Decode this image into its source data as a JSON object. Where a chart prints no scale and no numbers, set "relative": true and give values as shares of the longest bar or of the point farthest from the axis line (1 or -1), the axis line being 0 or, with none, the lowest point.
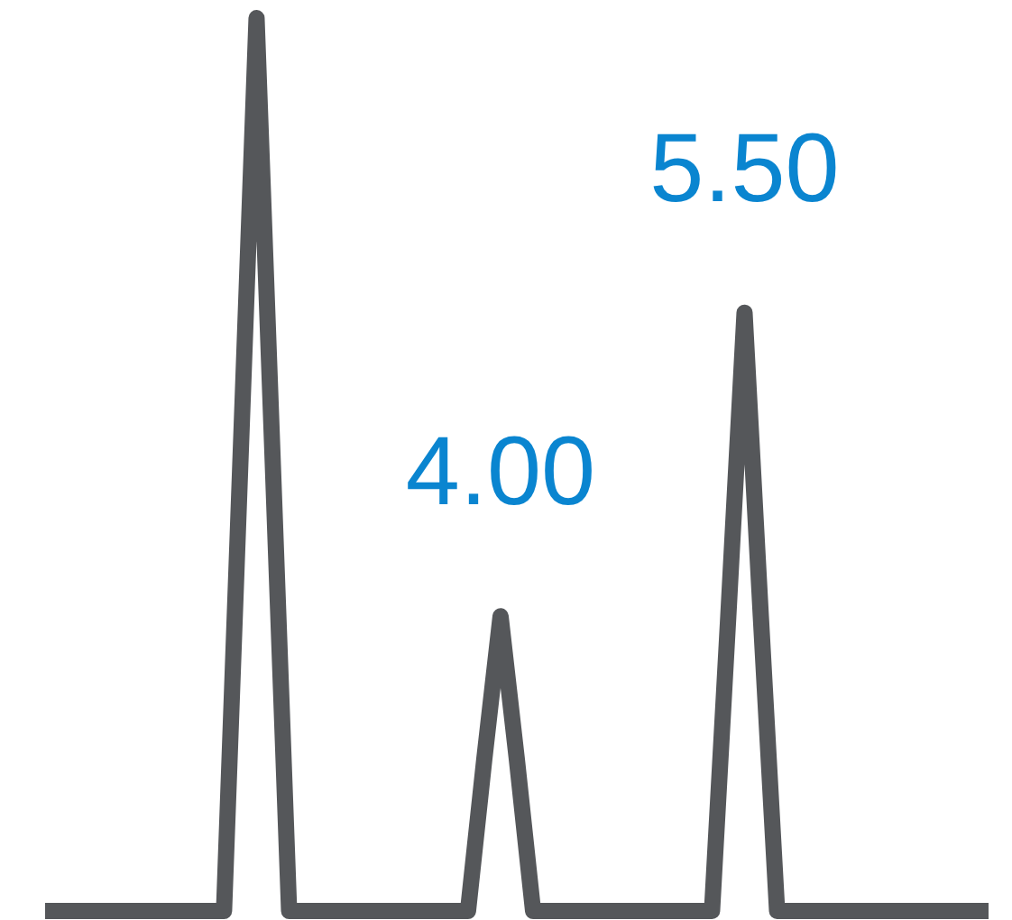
{
  "chart_data": {
    "type": "line",
    "relative": true,
    "line_style": "solid",
    "categories": [
      null,
      null,
      null,
      null,
      null,
      null,
      null,
      null,
      null,
      null,
      null,
      null,
      null,
      null,
      null,
      null,
      null,
      null,
      null,
      null,
      null,
      null,
      null,
      null,
      null,
      null,
      null,
      null,
      null,
      null,
      null,
      null,
      null,
      null,
      null,
      null,
      null,
      null,
      null,
      null,
      null,
      null,
      null,
      null,
      null,
      null,
      null,
      null,
      null,
      null,
      null,
      null,
      null,
      null,
      null,
      null,
      null,
      null,
      null
    ],
    "series": [
      {
        "color": "#55575a",
        "values": [
          0,
          0,
          0,
          0,
          0,
          0,
          0,
          0,
          0,
          0,
          0,
          0,
          0.5,
          1,
          0.5,
          0,
          0,
          0,
          0,
          0,
          0,
          0,
          0,
          0,
          0,
          0,
          0,
          0.17,
          0.33,
          0.17,
          0,
          0,
          0,
          0,
          0,
          0,
          0,
          0,
          0,
          0,
          0,
          0,
          0.33,
          0.67,
          0.33,
          0,
          0,
          0,
          0,
          0,
          0,
          0,
          0,
          0,
          0,
          0,
          0,
          0,
          0
        ]
      }
    ],
    "annotations": [
      "4.00",
      "5.50"
    ]
  }
}
